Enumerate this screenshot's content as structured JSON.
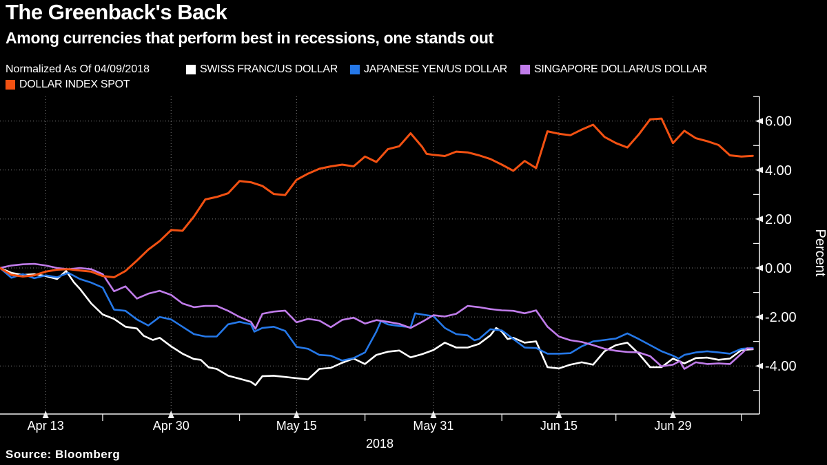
{
  "header": {
    "title": "The Greenback's Back",
    "subtitle": "Among currencies that perform best in recessions, one stands out"
  },
  "legend": {
    "note": "Normalized As Of 04/09/2018",
    "items": [
      {
        "label": "SWISS FRANC/US DOLLAR",
        "color": "#FFFFFF"
      },
      {
        "label": "JAPANESE YEN/US DOLLAR",
        "color": "#2578E8"
      },
      {
        "label": "SINGAPORE DOLLAR/US DOLLAR",
        "color": "#C07CEA"
      },
      {
        "label": "DOLLAR INDEX SPOT",
        "color": "#F25112"
      }
    ]
  },
  "source": "Source: Bloomberg",
  "colors": {
    "background": "#000000",
    "grid": "#7D7D7D",
    "axis": "#EFEFEF",
    "text": "#FFFFFF"
  },
  "chart_data": {
    "type": "line",
    "title": "The Greenback's Back",
    "xlabel": "2018",
    "ylabel": "Percent",
    "x_unit": "trading days since 2018-04-09 (normalized start)",
    "x_axis": {
      "year_label": "2018",
      "ticks": [
        {
          "d": 4,
          "label": "Apr 13"
        },
        {
          "d": 15,
          "label": "Apr 30"
        },
        {
          "d": 26,
          "label": "May 15"
        },
        {
          "d": 38,
          "label": "May 31"
        },
        {
          "d": 49,
          "label": "Jun 15"
        },
        {
          "d": 59,
          "label": "Jun 29"
        }
      ],
      "minor_ticks": [
        9,
        21,
        32,
        44,
        54,
        65
      ],
      "range": [
        0,
        66.6
      ]
    },
    "y_axis": {
      "label": "Percent",
      "ticks": [
        6,
        4,
        2,
        0,
        -2,
        -4
      ],
      "minor_ticks": [
        7,
        5,
        3,
        1,
        -1,
        -3,
        -5
      ],
      "range": [
        -6.0,
        7.0
      ],
      "grid": true
    },
    "series": [
      {
        "name": "SWISS FRANC/US DOLLAR",
        "color": "#FFFFFF",
        "points": [
          [
            0,
            0
          ],
          [
            1,
            -0.2
          ],
          [
            2,
            -0.28
          ],
          [
            3,
            -0.25
          ],
          [
            4,
            -0.33
          ],
          [
            5,
            -0.45
          ],
          [
            5.8,
            -0.12
          ],
          [
            6.5,
            -0.6
          ],
          [
            7,
            -0.85
          ],
          [
            8,
            -1.45
          ],
          [
            9,
            -1.9
          ],
          [
            10,
            -2.08
          ],
          [
            11,
            -2.4
          ],
          [
            12,
            -2.47
          ],
          [
            12.6,
            -2.77
          ],
          [
            13.4,
            -2.94
          ],
          [
            14,
            -2.85
          ],
          [
            15,
            -3.2
          ],
          [
            16,
            -3.5
          ],
          [
            17,
            -3.72
          ],
          [
            17.6,
            -3.75
          ],
          [
            18.3,
            -4.06
          ],
          [
            19,
            -4.12
          ],
          [
            20,
            -4.4
          ],
          [
            21,
            -4.52
          ],
          [
            22,
            -4.65
          ],
          [
            22.4,
            -4.78
          ],
          [
            23,
            -4.42
          ],
          [
            24,
            -4.4
          ],
          [
            25,
            -4.45
          ],
          [
            26,
            -4.5
          ],
          [
            27,
            -4.55
          ],
          [
            28,
            -4.12
          ],
          [
            29,
            -4.08
          ],
          [
            30,
            -3.87
          ],
          [
            31,
            -3.7
          ],
          [
            32,
            -3.92
          ],
          [
            33,
            -3.55
          ],
          [
            34,
            -3.42
          ],
          [
            35,
            -3.37
          ],
          [
            36,
            -3.65
          ],
          [
            37,
            -3.52
          ],
          [
            38,
            -3.35
          ],
          [
            39,
            -3.05
          ],
          [
            40,
            -3.25
          ],
          [
            41,
            -3.25
          ],
          [
            42,
            -3.1
          ],
          [
            43,
            -2.75
          ],
          [
            43.5,
            -2.45
          ],
          [
            44,
            -2.6
          ],
          [
            44.5,
            -2.9
          ],
          [
            45,
            -2.85
          ],
          [
            46,
            -3.05
          ],
          [
            47,
            -3.0
          ],
          [
            48,
            -4.05
          ],
          [
            49,
            -4.1
          ],
          [
            50,
            -3.95
          ],
          [
            51,
            -3.85
          ],
          [
            52,
            -3.95
          ],
          [
            53,
            -3.4
          ],
          [
            54,
            -3.15
          ],
          [
            55,
            -3.05
          ],
          [
            56,
            -3.5
          ],
          [
            57,
            -4.05
          ],
          [
            58,
            -4.05
          ],
          [
            59,
            -3.7
          ],
          [
            60,
            -3.9
          ],
          [
            61,
            -3.68
          ],
          [
            62,
            -3.66
          ],
          [
            63,
            -3.75
          ],
          [
            64,
            -3.7
          ],
          [
            65,
            -3.35
          ],
          [
            66,
            -3.32
          ]
        ]
      },
      {
        "name": "JAPANESE YEN/US DOLLAR",
        "color": "#2578E8",
        "points": [
          [
            0,
            0
          ],
          [
            1,
            -0.4
          ],
          [
            2,
            -0.25
          ],
          [
            3,
            -0.42
          ],
          [
            4,
            -0.3
          ],
          [
            5,
            -0.38
          ],
          [
            6,
            -0.2
          ],
          [
            7,
            -0.45
          ],
          [
            8,
            -0.6
          ],
          [
            9,
            -0.8
          ],
          [
            10,
            -1.7
          ],
          [
            11,
            -1.75
          ],
          [
            12,
            -2.1
          ],
          [
            13,
            -2.35
          ],
          [
            14,
            -2.0
          ],
          [
            15,
            -2.1
          ],
          [
            16,
            -2.4
          ],
          [
            17,
            -2.7
          ],
          [
            18,
            -2.8
          ],
          [
            19,
            -2.8
          ],
          [
            20,
            -2.3
          ],
          [
            21,
            -2.2
          ],
          [
            22,
            -2.3
          ],
          [
            22.3,
            -2.6
          ],
          [
            23,
            -2.45
          ],
          [
            24,
            -2.4
          ],
          [
            25,
            -2.57
          ],
          [
            26,
            -3.22
          ],
          [
            27,
            -3.3
          ],
          [
            28,
            -3.55
          ],
          [
            29,
            -3.58
          ],
          [
            30,
            -3.78
          ],
          [
            31,
            -3.68
          ],
          [
            32,
            -3.45
          ],
          [
            33,
            -2.6
          ],
          [
            33.4,
            -2.17
          ],
          [
            34,
            -2.3
          ],
          [
            35,
            -2.37
          ],
          [
            36,
            -2.42
          ],
          [
            36.4,
            -1.85
          ],
          [
            37,
            -1.9
          ],
          [
            38,
            -1.97
          ],
          [
            39,
            -2.45
          ],
          [
            40,
            -2.7
          ],
          [
            41,
            -2.75
          ],
          [
            41.6,
            -2.95
          ],
          [
            42,
            -2.9
          ],
          [
            43,
            -2.5
          ],
          [
            44,
            -2.55
          ],
          [
            45,
            -2.9
          ],
          [
            46,
            -3.25
          ],
          [
            47,
            -3.27
          ],
          [
            48,
            -3.5
          ],
          [
            49,
            -3.5
          ],
          [
            50,
            -3.48
          ],
          [
            51,
            -3.2
          ],
          [
            52,
            -3.0
          ],
          [
            53,
            -2.94
          ],
          [
            54,
            -2.88
          ],
          [
            55,
            -2.67
          ],
          [
            56,
            -2.9
          ],
          [
            57,
            -3.15
          ],
          [
            58,
            -3.4
          ],
          [
            59,
            -3.58
          ],
          [
            59.5,
            -3.7
          ],
          [
            60,
            -3.55
          ],
          [
            61,
            -3.45
          ],
          [
            62,
            -3.4
          ],
          [
            63,
            -3.45
          ],
          [
            64,
            -3.5
          ],
          [
            65,
            -3.3
          ],
          [
            66,
            -3.27
          ]
        ]
      },
      {
        "name": "SINGAPORE DOLLAR/US DOLLAR",
        "color": "#C07CEA",
        "points": [
          [
            0,
            0
          ],
          [
            1,
            0.1
          ],
          [
            2,
            0.15
          ],
          [
            3,
            0.17
          ],
          [
            4,
            0.1
          ],
          [
            5,
            0.0
          ],
          [
            6,
            -0.05
          ],
          [
            7,
            0.0
          ],
          [
            8,
            -0.05
          ],
          [
            9,
            -0.25
          ],
          [
            10,
            -0.95
          ],
          [
            11,
            -0.75
          ],
          [
            12,
            -1.25
          ],
          [
            13,
            -1.05
          ],
          [
            14,
            -0.93
          ],
          [
            15,
            -1.1
          ],
          [
            16,
            -1.45
          ],
          [
            17,
            -1.6
          ],
          [
            18,
            -1.55
          ],
          [
            19,
            -1.55
          ],
          [
            20,
            -1.75
          ],
          [
            21,
            -2.0
          ],
          [
            22,
            -2.2
          ],
          [
            22.4,
            -2.48
          ],
          [
            23,
            -1.87
          ],
          [
            24,
            -1.78
          ],
          [
            25,
            -1.74
          ],
          [
            26,
            -2.22
          ],
          [
            27,
            -2.08
          ],
          [
            28,
            -2.15
          ],
          [
            29,
            -2.42
          ],
          [
            30,
            -2.12
          ],
          [
            31,
            -2.03
          ],
          [
            32,
            -2.27
          ],
          [
            33,
            -2.13
          ],
          [
            34,
            -2.2
          ],
          [
            35,
            -2.28
          ],
          [
            36,
            -2.45
          ],
          [
            37,
            -2.2
          ],
          [
            38,
            -1.93
          ],
          [
            39,
            -1.98
          ],
          [
            40,
            -1.87
          ],
          [
            41,
            -1.55
          ],
          [
            42,
            -1.6
          ],
          [
            43,
            -1.68
          ],
          [
            44,
            -1.73
          ],
          [
            45,
            -1.75
          ],
          [
            46,
            -1.85
          ],
          [
            47,
            -1.73
          ],
          [
            48,
            -2.4
          ],
          [
            49,
            -2.8
          ],
          [
            50,
            -2.95
          ],
          [
            51,
            -3.02
          ],
          [
            52,
            -3.15
          ],
          [
            53,
            -3.3
          ],
          [
            54,
            -3.38
          ],
          [
            55,
            -3.43
          ],
          [
            56,
            -3.45
          ],
          [
            57,
            -3.6
          ],
          [
            58,
            -4.02
          ],
          [
            59,
            -3.95
          ],
          [
            59.6,
            -3.8
          ],
          [
            60,
            -4.12
          ],
          [
            61,
            -3.85
          ],
          [
            62,
            -3.92
          ],
          [
            63,
            -3.9
          ],
          [
            64,
            -3.92
          ],
          [
            65,
            -3.5
          ],
          [
            65.5,
            -3.28
          ],
          [
            66,
            -3.3
          ]
        ]
      },
      {
        "name": "DOLLAR INDEX SPOT",
        "color": "#F25112",
        "points": [
          [
            0,
            0
          ],
          [
            1,
            -0.28
          ],
          [
            2,
            -0.35
          ],
          [
            3,
            -0.3
          ],
          [
            4,
            -0.15
          ],
          [
            5,
            -0.07
          ],
          [
            6,
            -0.05
          ],
          [
            7,
            -0.1
          ],
          [
            8,
            -0.15
          ],
          [
            9,
            -0.33
          ],
          [
            10,
            -0.38
          ],
          [
            11,
            -0.12
          ],
          [
            12,
            0.3
          ],
          [
            13,
            0.75
          ],
          [
            14,
            1.1
          ],
          [
            15,
            1.55
          ],
          [
            16,
            1.52
          ],
          [
            17,
            2.1
          ],
          [
            18,
            2.8
          ],
          [
            19,
            2.9
          ],
          [
            20,
            3.05
          ],
          [
            21,
            3.55
          ],
          [
            22,
            3.5
          ],
          [
            23,
            3.35
          ],
          [
            24,
            3.02
          ],
          [
            25,
            2.98
          ],
          [
            26,
            3.6
          ],
          [
            27,
            3.85
          ],
          [
            28,
            4.05
          ],
          [
            29,
            4.15
          ],
          [
            30,
            4.22
          ],
          [
            31,
            4.15
          ],
          [
            32,
            4.55
          ],
          [
            33,
            4.33
          ],
          [
            34,
            4.85
          ],
          [
            35,
            4.97
          ],
          [
            36,
            5.5
          ],
          [
            37,
            4.95
          ],
          [
            37.4,
            4.66
          ],
          [
            38,
            4.62
          ],
          [
            39,
            4.57
          ],
          [
            40,
            4.75
          ],
          [
            41,
            4.72
          ],
          [
            42,
            4.6
          ],
          [
            43,
            4.45
          ],
          [
            44,
            4.22
          ],
          [
            45,
            3.97
          ],
          [
            46,
            4.37
          ],
          [
            47,
            4.08
          ],
          [
            48,
            5.58
          ],
          [
            49,
            5.48
          ],
          [
            50,
            5.42
          ],
          [
            51,
            5.65
          ],
          [
            52,
            5.85
          ],
          [
            53,
            5.35
          ],
          [
            54,
            5.1
          ],
          [
            55,
            4.92
          ],
          [
            56,
            5.45
          ],
          [
            57,
            6.07
          ],
          [
            58,
            6.1
          ],
          [
            59,
            5.1
          ],
          [
            60,
            5.6
          ],
          [
            61,
            5.3
          ],
          [
            62,
            5.18
          ],
          [
            63,
            5.02
          ],
          [
            64,
            4.6
          ],
          [
            65,
            4.55
          ],
          [
            66,
            4.58
          ]
        ]
      }
    ],
    "legend_position": "top",
    "grid": "dotted"
  }
}
